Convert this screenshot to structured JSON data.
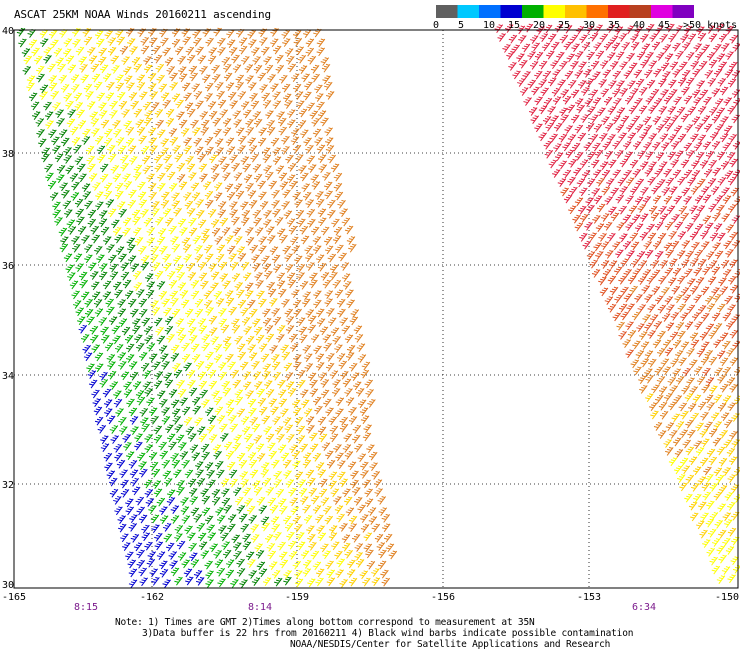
{
  "title": "ASCAT 25KM NOAA Winds 20160211 ascending",
  "legend": {
    "ticks": [
      "0",
      "5",
      "10",
      "15",
      "20",
      "25",
      "30",
      "35",
      "40",
      "45",
      ">50 knots"
    ],
    "colors": [
      "#606060",
      "#00c8ff",
      "#0070ff",
      "#0000d0",
      "#00b000",
      "#ffff00",
      "#ffc000",
      "#ff7000",
      "#e02020",
      "#b84020",
      "#e000e0",
      "#8000c0"
    ]
  },
  "axes": {
    "lon_labels": [
      "-165",
      "-162",
      "-159",
      "-156",
      "-153",
      "-150"
    ],
    "lat_labels": [
      "40",
      "38",
      "36",
      "34",
      "32",
      "30"
    ]
  },
  "pass_times": [
    "8:15",
    "8:14",
    "6:34"
  ],
  "notes": {
    "line1": "Note: 1) Times are GMT 2)Times along bottom correspond to measurement at 35N",
    "line2": "3)Data buffer is 22 hrs from 20160211 4) Black wind barbs indicate possible contamination",
    "credit": "NOAA/NESDIS/Center for Satellite Applications and Research"
  },
  "swaths": [
    {
      "name": "west-swath",
      "wind_colors": [
        "#0000d0",
        "#00b000",
        "#008000",
        "#ffff00",
        "#ffd000",
        "#e08020"
      ]
    },
    {
      "name": "east-swath",
      "wind_colors": [
        "#e02040",
        "#e05020",
        "#e08020",
        "#ffd000",
        "#ffff00"
      ]
    }
  ]
}
